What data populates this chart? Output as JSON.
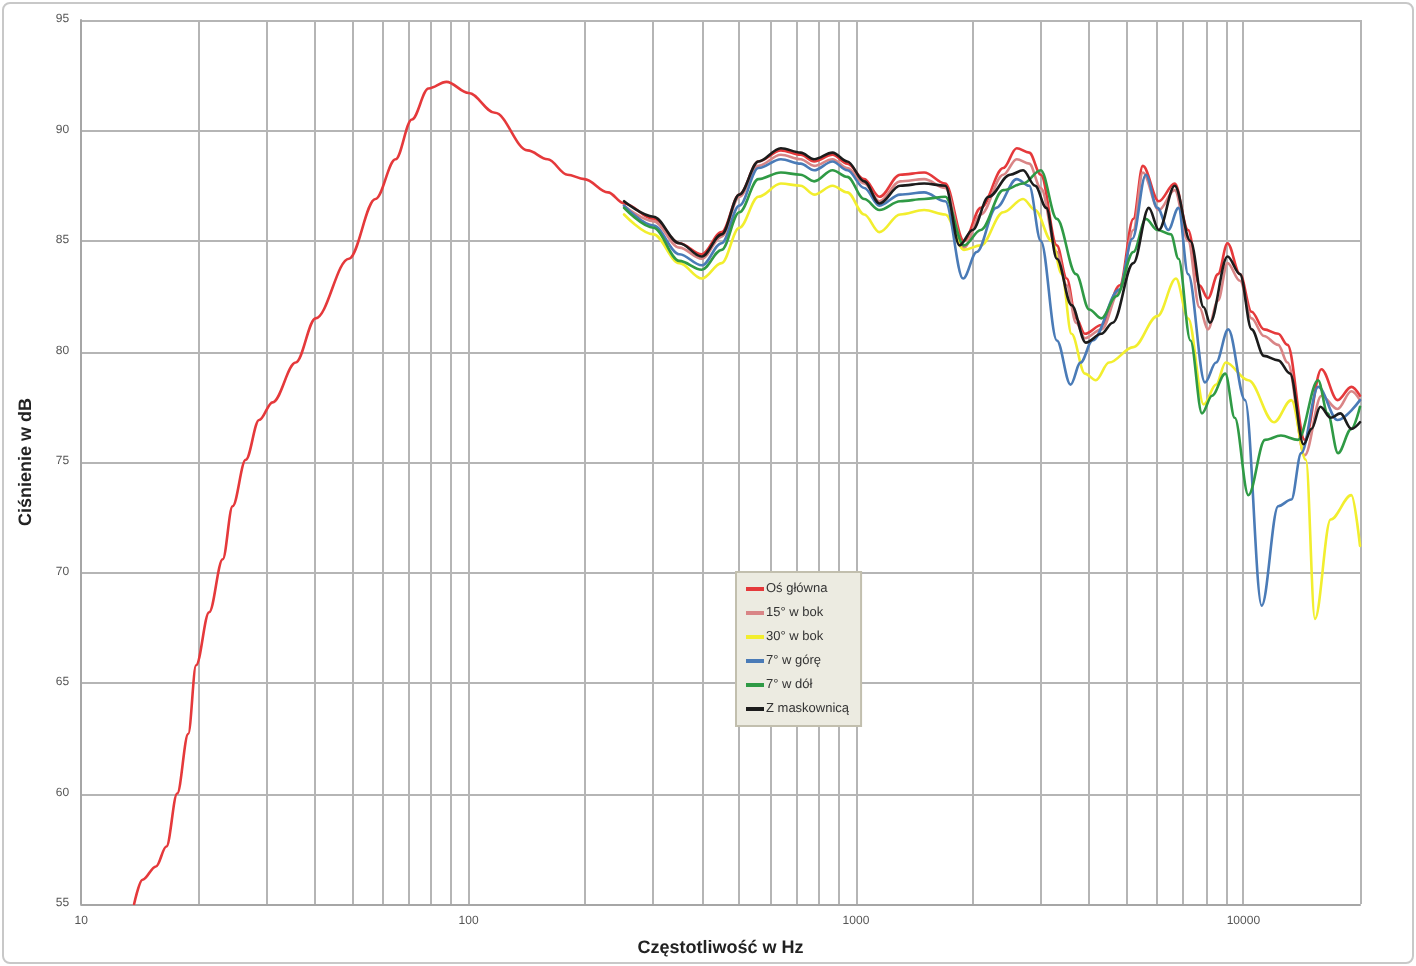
{
  "chart_data": {
    "type": "line",
    "xlabel": "Częstotliwość w Hz",
    "ylabel": "Ciśnienie w dB",
    "xlim": [
      10,
      20000
    ],
    "ylim": [
      55,
      95
    ],
    "xticks": [
      10,
      {
        "value": 20,
        "label": null
      },
      {
        "value": 30,
        "label": null
      },
      {
        "value": 40,
        "label": null
      },
      {
        "value": 50,
        "label": null
      },
      {
        "value": 60,
        "label": null
      },
      {
        "value": 70,
        "label": null
      },
      {
        "value": 80,
        "label": null
      },
      {
        "value": 90,
        "label": null
      },
      100,
      {
        "value": 200,
        "label": null
      },
      {
        "value": 300,
        "label": null
      },
      {
        "value": 400,
        "label": null
      },
      {
        "value": 500,
        "label": null
      },
      {
        "value": 600,
        "label": null
      },
      {
        "value": 700,
        "label": null
      },
      {
        "value": 800,
        "label": null
      },
      {
        "value": 900,
        "label": null
      },
      1000,
      {
        "value": 2000,
        "label": null
      },
      {
        "value": 3000,
        "label": null
      },
      {
        "value": 4000,
        "label": null
      },
      {
        "value": 5000,
        "label": null
      },
      {
        "value": 6000,
        "label": null
      },
      {
        "value": 7000,
        "label": null
      },
      {
        "value": 8000,
        "label": null
      },
      {
        "value": 9000,
        "label": null
      },
      10000,
      {
        "value": 20000,
        "label": null
      }
    ],
    "yticks": [
      55,
      60,
      65,
      70,
      75,
      80,
      85,
      90,
      95
    ],
    "log": "x",
    "grid": true,
    "legend": "center",
    "line_style": "solid",
    "series": [
      {
        "name": "Oś główna",
        "color": "#e5393b",
        "x": [
          13.7,
          14.4,
          15.6,
          16.6,
          17.7,
          18.9,
          19.8,
          21.4,
          23.2,
          24.6,
          26.6,
          28.8,
          31.2,
          35.8,
          40.3,
          49.1,
          57.5,
          64.8,
          71.4,
          78.8,
          87.7,
          100,
          117,
          142,
          160,
          180,
          199,
          229,
          252,
          300,
          350,
          400,
          450,
          500,
          560,
          640,
          720,
          780,
          870,
          950,
          1050,
          1150,
          1300,
          1500,
          1700,
          1900,
          2100,
          2400,
          2600,
          2800,
          3000,
          3300,
          3500,
          3700,
          3900,
          4300,
          4800,
          5200,
          5500,
          6050,
          6650,
          7200,
          7700,
          8100,
          8600,
          9100,
          9800,
          10500,
          11300,
          12300,
          13000,
          14400,
          15900,
          17500,
          19000,
          20000
        ],
        "values": [
          55,
          56.1,
          56.7,
          57.6,
          60.0,
          62.7,
          65.8,
          68.2,
          70.6,
          73.0,
          75.1,
          76.9,
          77.7,
          79.5,
          81.5,
          84.2,
          86.9,
          88.7,
          90.5,
          91.9,
          92.2,
          91.7,
          90.8,
          89.1,
          88.7,
          88.0,
          87.8,
          87.2,
          86.7,
          86.0,
          84.9,
          84.4,
          85.4,
          87.1,
          88.6,
          89.1,
          88.9,
          88.6,
          88.9,
          88.5,
          87.8,
          87.0,
          88.0,
          88.1,
          87.6,
          85.0,
          86.5,
          88.3,
          89.2,
          89.0,
          88.0,
          84.8,
          83.3,
          81.5,
          80.8,
          81.2,
          83.0,
          86.0,
          88.4,
          86.8,
          87.6,
          85.5,
          83.0,
          82.4,
          83.5,
          84.9,
          83.5,
          81.8,
          81.0,
          80.8,
          80.3,
          76.0,
          79.2,
          77.8,
          78.4,
          78.0
        ]
      },
      {
        "name": "15° w bok",
        "color": "#d98586",
        "x": [
          252,
          300,
          350,
          400,
          450,
          500,
          560,
          640,
          720,
          780,
          870,
          950,
          1050,
          1150,
          1300,
          1500,
          1700,
          1900,
          2100,
          2400,
          2600,
          2800,
          3000,
          3300,
          3500,
          3700,
          3900,
          4300,
          4800,
          5200,
          5500,
          6050,
          6650,
          7200,
          7700,
          8100,
          8600,
          9100,
          9800,
          10500,
          11300,
          12300,
          13000,
          14400,
          15900,
          17500,
          19000,
          20000
        ],
        "values": [
          86.6,
          85.9,
          84.7,
          84.2,
          85.2,
          87.0,
          88.4,
          88.9,
          88.7,
          88.4,
          88.7,
          88.3,
          87.6,
          86.8,
          87.7,
          87.8,
          87.4,
          84.7,
          86.2,
          88.0,
          88.7,
          88.5,
          87.4,
          84.5,
          83.0,
          81.3,
          80.6,
          81.0,
          82.8,
          85.5,
          88.1,
          86.4,
          87.3,
          85.0,
          82.0,
          81.0,
          82.3,
          84.0,
          83.2,
          81.5,
          80.7,
          80.3,
          79.5,
          75.3,
          78.0,
          77.4,
          78.2,
          77.8
        ]
      },
      {
        "name": "30° w bok",
        "color": "#f2ee2e",
        "x": [
          252,
          300,
          350,
          400,
          450,
          500,
          560,
          640,
          720,
          780,
          870,
          950,
          1050,
          1150,
          1300,
          1500,
          1700,
          1900,
          2100,
          2400,
          2700,
          2900,
          3200,
          3400,
          3600,
          3900,
          4160,
          4500,
          5200,
          6000,
          6700,
          7200,
          7900,
          8500,
          9000,
          10300,
          12000,
          13300,
          14500,
          15300,
          16800,
          19000,
          20000
        ],
        "values": [
          86.2,
          85.3,
          84.0,
          83.3,
          84.0,
          85.6,
          87.0,
          87.6,
          87.5,
          87.1,
          87.5,
          87.2,
          86.2,
          85.4,
          86.2,
          86.4,
          86.2,
          84.6,
          84.8,
          86.3,
          86.9,
          86.4,
          85.0,
          83.5,
          80.8,
          79.0,
          78.7,
          79.5,
          80.2,
          81.6,
          83.3,
          81.5,
          77.6,
          78.5,
          79.5,
          78.7,
          76.8,
          77.8,
          75.1,
          67.9,
          72.4,
          73.5,
          71.2
        ]
      },
      {
        "name": "7° w górę",
        "color": "#4a7bb7",
        "x": [
          252,
          300,
          350,
          400,
          450,
          500,
          560,
          640,
          720,
          780,
          870,
          950,
          1050,
          1150,
          1300,
          1500,
          1700,
          1890,
          2050,
          2300,
          2600,
          2800,
          3000,
          3300,
          3580,
          3800,
          4080,
          4780,
          5170,
          5600,
          6000,
          6400,
          6800,
          7200,
          7960,
          8500,
          9140,
          10100,
          11150,
          12300,
          13300,
          14100,
          15600,
          17500,
          20000
        ],
        "values": [
          86.6,
          85.7,
          84.4,
          83.9,
          84.9,
          86.6,
          88.3,
          88.7,
          88.5,
          88.2,
          88.6,
          88.2,
          87.4,
          86.6,
          87.1,
          87.2,
          86.8,
          83.3,
          84.5,
          86.5,
          87.8,
          87.5,
          85.0,
          80.5,
          78.5,
          79.5,
          80.5,
          82.8,
          85.1,
          88.0,
          86.5,
          85.5,
          86.5,
          83.5,
          78.6,
          79.5,
          81.0,
          77.8,
          68.5,
          73.0,
          73.3,
          75.4,
          78.4,
          76.9,
          77.8
        ]
      },
      {
        "name": "7° w dół",
        "color": "#2f9a45",
        "x": [
          252,
          300,
          350,
          400,
          450,
          500,
          560,
          640,
          720,
          780,
          870,
          950,
          1050,
          1150,
          1300,
          1500,
          1700,
          1900,
          2100,
          2400,
          2700,
          3000,
          3300,
          3700,
          4000,
          4300,
          4700,
          5200,
          5600,
          6000,
          6500,
          6800,
          7300,
          7820,
          8300,
          8980,
          9500,
          10300,
          11370,
          12500,
          13840,
          15590,
          16500,
          17550,
          19000,
          20000
        ],
        "values": [
          86.5,
          85.6,
          84.1,
          83.7,
          84.6,
          86.3,
          87.8,
          88.1,
          88.0,
          87.7,
          88.2,
          87.9,
          86.9,
          86.4,
          86.8,
          86.9,
          87.0,
          84.8,
          85.5,
          87.3,
          87.6,
          88.2,
          86.0,
          83.5,
          81.9,
          81.5,
          82.5,
          84.5,
          86.0,
          85.5,
          85.3,
          84.2,
          80.5,
          77.2,
          78.0,
          79.0,
          77.0,
          73.5,
          76.0,
          76.2,
          76.0,
          78.7,
          77.2,
          75.4,
          76.5,
          77.5
        ]
      },
      {
        "name": "Z maskownicą",
        "color": "#1c1c1c",
        "x": [
          252,
          300,
          350,
          400,
          450,
          500,
          560,
          640,
          720,
          780,
          870,
          950,
          1050,
          1150,
          1300,
          1500,
          1700,
          1850,
          2000,
          2200,
          2500,
          2700,
          2900,
          3100,
          3300,
          3600,
          3920,
          4300,
          4600,
          5200,
          5700,
          6050,
          6650,
          7300,
          7900,
          8200,
          9100,
          9800,
          10500,
          11300,
          12300,
          13200,
          14300,
          15000,
          15800,
          16800,
          17800,
          19000,
          20000
        ],
        "values": [
          86.8,
          86.1,
          84.9,
          84.3,
          85.3,
          87.1,
          88.6,
          89.2,
          89.0,
          88.7,
          89.0,
          88.6,
          87.7,
          86.7,
          87.5,
          87.6,
          87.5,
          84.8,
          85.5,
          87.0,
          88.0,
          88.2,
          87.5,
          86.5,
          84.2,
          82.1,
          80.4,
          80.8,
          81.3,
          84.0,
          86.5,
          85.5,
          87.5,
          85.0,
          82.0,
          81.3,
          84.3,
          83.5,
          81.0,
          79.8,
          79.6,
          79.0,
          75.8,
          76.5,
          77.5,
          77.0,
          77.2,
          76.5,
          76.8
        ]
      }
    ]
  }
}
